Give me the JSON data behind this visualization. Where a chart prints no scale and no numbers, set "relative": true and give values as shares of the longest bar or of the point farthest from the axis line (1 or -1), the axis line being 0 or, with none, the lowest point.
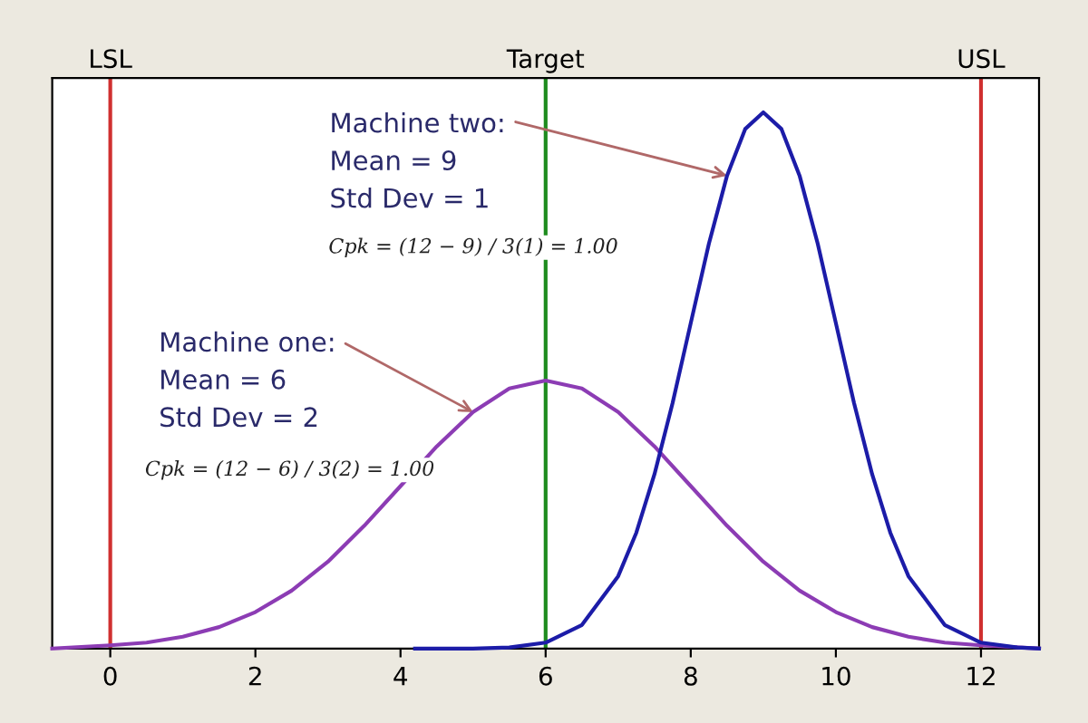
{
  "chart_data": {
    "type": "line",
    "relative": true,
    "xlim": [
      -0.8,
      12.8
    ],
    "xticks": [
      0,
      2,
      4,
      6,
      8,
      10,
      12
    ],
    "tick_labels": "x",
    "grid": false,
    "legend": false,
    "marker": "none",
    "line_style": "solid",
    "series": [
      {
        "color": "#8c3cb4",
        "x": [
          -0.8,
          0,
          0.5,
          1,
          1.5,
          2,
          2.5,
          3,
          3.5,
          4,
          4.5,
          5,
          5.5,
          6,
          6.5,
          7,
          7.5,
          8,
          8.5,
          9,
          9.5,
          10,
          10.5,
          11,
          11.5,
          12,
          12.8
        ],
        "values": [
          0.0,
          0.006,
          0.011,
          0.022,
          0.04,
          0.068,
          0.108,
          0.162,
          0.229,
          0.303,
          0.377,
          0.441,
          0.485,
          0.5,
          0.485,
          0.441,
          0.377,
          0.303,
          0.229,
          0.162,
          0.108,
          0.068,
          0.04,
          0.022,
          0.011,
          0.006,
          0.0
        ]
      },
      {
        "color": "#1c1ca8",
        "x": [
          4.2,
          5,
          5.5,
          6,
          6.5,
          7,
          7.25,
          7.5,
          7.75,
          8,
          8.25,
          8.5,
          8.75,
          9,
          9.25,
          9.5,
          9.75,
          10,
          10.25,
          10.5,
          10.75,
          11,
          11.5,
          12,
          12.5,
          12.8
        ],
        "values": [
          0.0,
          0.0,
          0.002,
          0.011,
          0.044,
          0.135,
          0.216,
          0.325,
          0.458,
          0.607,
          0.755,
          0.882,
          0.969,
          1.0,
          0.969,
          0.882,
          0.755,
          0.607,
          0.458,
          0.325,
          0.216,
          0.135,
          0.044,
          0.011,
          0.002,
          0.0
        ]
      }
    ],
    "ref_lines": [
      {
        "axis": "x",
        "value": 0,
        "label": "LSL",
        "color": "#d03030"
      },
      {
        "axis": "x",
        "value": 6,
        "label": "Target",
        "color": "#1e8c1e"
      },
      {
        "axis": "x",
        "value": 12,
        "label": "USL",
        "color": "#d03030"
      }
    ],
    "annotations": [
      {
        "text": "Machine two:\nMean = 9\nStd Dev = 1",
        "x": 8.5,
        "y": 0.882
      },
      "Cpk = (12 − 9) / 3(1) = 1.00",
      {
        "text": "Machine one:\nMean = 6\nStd Dev = 2",
        "x": 5,
        "y": 0.441
      },
      "Cpk = (12 − 6) / 3(2) = 1.00"
    ]
  }
}
